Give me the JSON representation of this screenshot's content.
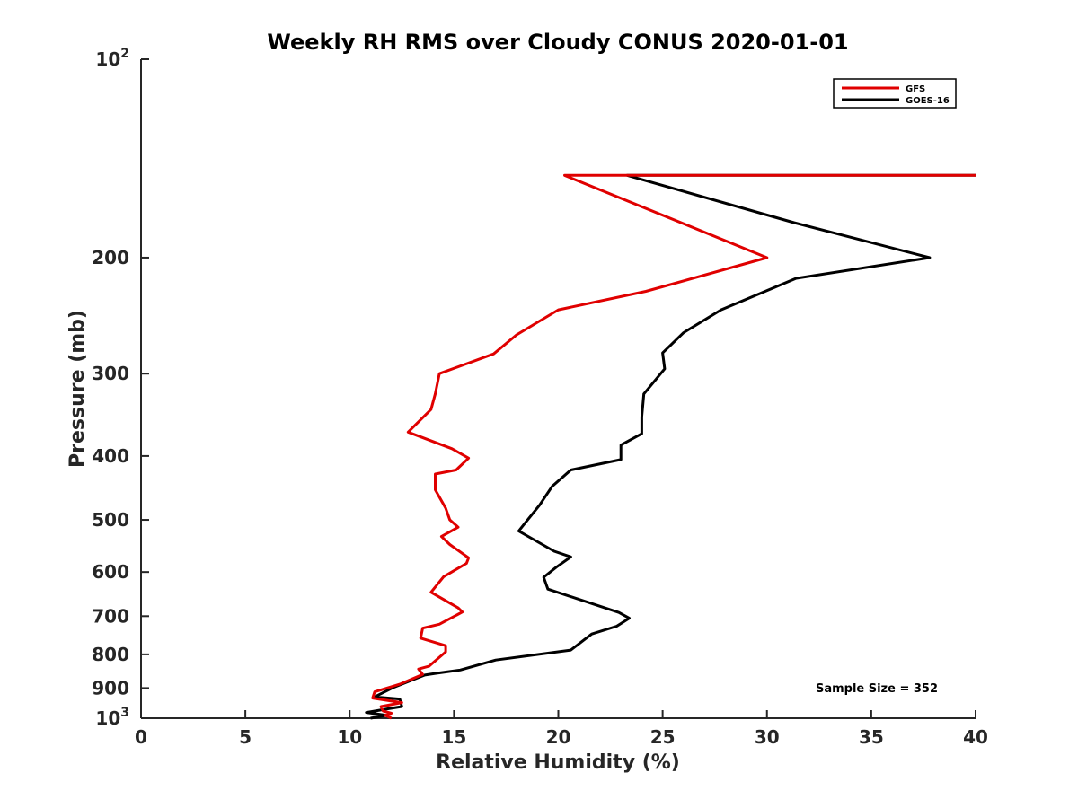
{
  "chart_data": {
    "type": "line",
    "title": "Weekly RH RMS over Cloudy CONUS 2020-01-01",
    "xlabel": "Relative Humidity (%)",
    "ylabel": "Pressure (mb)",
    "xlim": [
      0,
      40
    ],
    "ylim": [
      100,
      1000
    ],
    "y_scale": "log",
    "y_reversed": true,
    "grid": false,
    "legend_position": "top-right",
    "x_ticks": [
      "0",
      "5",
      "10",
      "15",
      "20",
      "25",
      "30",
      "35",
      "40"
    ],
    "y_ticks": [
      {
        "value": 100,
        "base": "10",
        "exp": "2"
      },
      {
        "value": 200,
        "label": "200"
      },
      {
        "value": 300,
        "label": "300"
      },
      {
        "value": 400,
        "label": "400"
      },
      {
        "value": 500,
        "label": "500"
      },
      {
        "value": 600,
        "label": "600"
      },
      {
        "value": 700,
        "label": "700"
      },
      {
        "value": 800,
        "label": "800"
      },
      {
        "value": 900,
        "label": "900"
      },
      {
        "value": 1000,
        "base": "10",
        "exp": "3"
      }
    ],
    "annotation": "Sample Size = 352",
    "series": [
      {
        "name": "GFS",
        "color": "#e00000",
        "points": [
          [
            40,
            150
          ],
          [
            20.3,
            150
          ],
          [
            30.0,
            200
          ],
          [
            24.2,
            225
          ],
          [
            20.0,
            240
          ],
          [
            18.0,
            262
          ],
          [
            16.9,
            280
          ],
          [
            14.3,
            300
          ],
          [
            14.1,
            322
          ],
          [
            13.9,
            340
          ],
          [
            12.8,
            368
          ],
          [
            14.9,
            390
          ],
          [
            15.7,
            403
          ],
          [
            15.1,
            420
          ],
          [
            14.1,
            426
          ],
          [
            14.1,
            450
          ],
          [
            14.6,
            480
          ],
          [
            14.8,
            500
          ],
          [
            15.2,
            513
          ],
          [
            14.4,
            530
          ],
          [
            14.8,
            545
          ],
          [
            15.7,
            571
          ],
          [
            15.6,
            582
          ],
          [
            14.5,
            610
          ],
          [
            13.9,
            644
          ],
          [
            15.2,
            680
          ],
          [
            15.4,
            690
          ],
          [
            14.3,
            720
          ],
          [
            13.5,
            730
          ],
          [
            13.4,
            756
          ],
          [
            14.6,
            776
          ],
          [
            14.6,
            793
          ],
          [
            13.8,
            834
          ],
          [
            13.3,
            842
          ],
          [
            13.5,
            858
          ],
          [
            12.4,
            888
          ],
          [
            11.2,
            912
          ],
          [
            11.1,
            932
          ],
          [
            12.5,
            947
          ],
          [
            11.5,
            960
          ],
          [
            11.6,
            975
          ],
          [
            12.0,
            983
          ],
          [
            11.7,
            990
          ],
          [
            12.0,
            1000
          ]
        ]
      },
      {
        "name": "GOES-16",
        "color": "#000000",
        "points": [
          [
            40,
            150
          ],
          [
            23.3,
            150
          ],
          [
            31.3,
            177
          ],
          [
            37.8,
            200
          ],
          [
            31.4,
            215
          ],
          [
            27.8,
            240
          ],
          [
            26.0,
            260
          ],
          [
            25.0,
            279
          ],
          [
            25.1,
            295
          ],
          [
            24.1,
            322
          ],
          [
            24.0,
            349
          ],
          [
            24.0,
            370
          ],
          [
            23.0,
            385
          ],
          [
            23.0,
            405
          ],
          [
            20.6,
            420
          ],
          [
            19.7,
            445
          ],
          [
            19.1,
            475
          ],
          [
            18.4,
            506
          ],
          [
            18.1,
            520
          ],
          [
            19.8,
            558
          ],
          [
            20.6,
            569
          ],
          [
            19.9,
            590
          ],
          [
            19.3,
            611
          ],
          [
            19.5,
            637
          ],
          [
            22.9,
            691
          ],
          [
            23.4,
            705
          ],
          [
            22.8,
            725
          ],
          [
            21.6,
            745
          ],
          [
            20.6,
            788
          ],
          [
            17.0,
            816
          ],
          [
            15.3,
            845
          ],
          [
            14.1,
            855
          ],
          [
            13.6,
            860
          ],
          [
            12.1,
            898
          ],
          [
            11.2,
            928
          ],
          [
            12.4,
            935
          ],
          [
            12.5,
            960
          ],
          [
            11.8,
            968
          ],
          [
            10.8,
            980
          ],
          [
            11.8,
            990
          ],
          [
            11.0,
            1000
          ]
        ]
      }
    ]
  }
}
